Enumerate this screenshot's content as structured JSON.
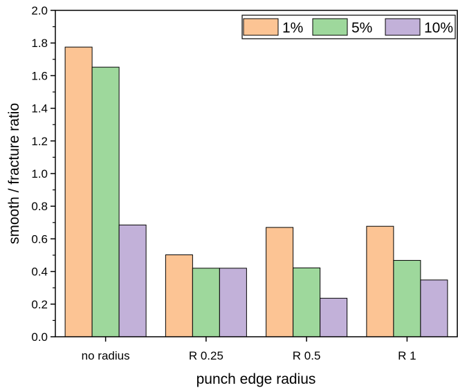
{
  "chart_data": {
    "type": "bar",
    "title": "",
    "xlabel": "punch edge radius",
    "ylabel": "smooth / fracture ratio",
    "categories": [
      "no radius",
      "R 0.25",
      "R 0.5",
      "R 1"
    ],
    "series": [
      {
        "name": "1%",
        "color": "#FCC494",
        "values": [
          1.775,
          0.502,
          0.67,
          0.677
        ]
      },
      {
        "name": "5%",
        "color": "#9ED89C",
        "values": [
          1.652,
          0.42,
          0.422,
          0.468
        ]
      },
      {
        "name": "10%",
        "color": "#C2B1D9",
        "values": [
          0.685,
          0.42,
          0.236,
          0.348
        ]
      }
    ],
    "ylim": [
      0,
      2.0
    ],
    "yticks": [
      "0.0",
      "0.2",
      "0.4",
      "0.6",
      "0.8",
      "1.0",
      "1.2",
      "1.4",
      "1.6",
      "1.8",
      "2.0"
    ],
    "grid": false,
    "legend_position": "top-right"
  }
}
